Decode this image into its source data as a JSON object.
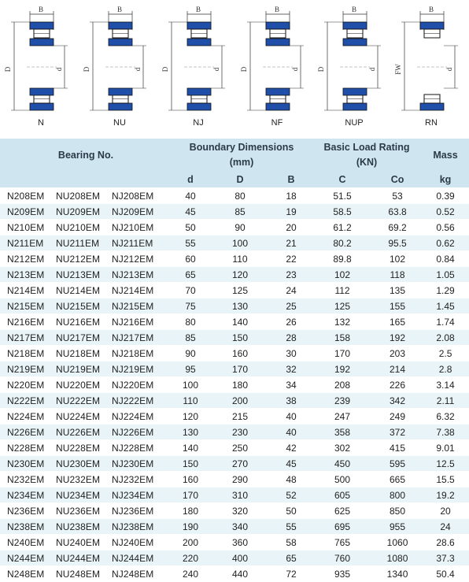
{
  "diagrams": [
    {
      "label": "N",
      "dims": [
        "B",
        "D",
        "d"
      ]
    },
    {
      "label": "NU",
      "dims": [
        "B",
        "D",
        "d"
      ]
    },
    {
      "label": "NJ",
      "dims": [
        "B",
        "D",
        "d"
      ]
    },
    {
      "label": "NF",
      "dims": [
        "B",
        "D",
        "d"
      ]
    },
    {
      "label": "NUP",
      "dims": [
        "B",
        "D",
        "d"
      ]
    },
    {
      "label": "RN",
      "dims": [
        "B",
        "FW",
        "d"
      ]
    }
  ],
  "header": {
    "bearing_no": "Bearing No.",
    "boundary": "Boundary Dimensions",
    "boundary_unit": "(mm)",
    "load": "Basic Load Rating",
    "load_unit": "(KN)",
    "mass": "Mass",
    "col_d": "d",
    "col_D": "D",
    "col_B": "B",
    "col_C": "C",
    "col_Co": "Co",
    "col_kg": "kg"
  },
  "colors": {
    "ring": "#1f4fa8",
    "header_bg": "#cfe6f0",
    "row_alt": "#e9f4f8"
  },
  "rows": [
    {
      "n": "N208EM",
      "nu": "NU208EM",
      "nj": "NJ208EM",
      "d": "40",
      "D": "80",
      "B": "18",
      "C": "51.5",
      "Co": "53",
      "kg": "0.39"
    },
    {
      "n": "N209EM",
      "nu": "NU209EM",
      "nj": "NJ209EM",
      "d": "45",
      "D": "85",
      "B": "19",
      "C": "58.5",
      "Co": "63.8",
      "kg": "0.52"
    },
    {
      "n": "N210EM",
      "nu": "NU210EM",
      "nj": "NJ210EM",
      "d": "50",
      "D": "90",
      "B": "20",
      "C": "61.2",
      "Co": "69.2",
      "kg": "0.56"
    },
    {
      "n": "N211EM",
      "nu": "NU211EM",
      "nj": "NJ211EM",
      "d": "55",
      "D": "100",
      "B": "21",
      "C": "80.2",
      "Co": "95.5",
      "kg": "0.62"
    },
    {
      "n": "N212EM",
      "nu": "NU212EM",
      "nj": "NJ212EM",
      "d": "60",
      "D": "110",
      "B": "22",
      "C": "89.8",
      "Co": "102",
      "kg": "0.84"
    },
    {
      "n": "N213EM",
      "nu": "NU213EM",
      "nj": "NJ213EM",
      "d": "65",
      "D": "120",
      "B": "23",
      "C": "102",
      "Co": "118",
      "kg": "1.05"
    },
    {
      "n": "N214EM",
      "nu": "NU214EM",
      "nj": "NJ214EM",
      "d": "70",
      "D": "125",
      "B": "24",
      "C": "112",
      "Co": "135",
      "kg": "1.29"
    },
    {
      "n": "N215EM",
      "nu": "NU215EM",
      "nj": "NJ215EM",
      "d": "75",
      "D": "130",
      "B": "25",
      "C": "125",
      "Co": "155",
      "kg": "1.45"
    },
    {
      "n": "N216EM",
      "nu": "NU216EM",
      "nj": "NJ216EM",
      "d": "80",
      "D": "140",
      "B": "26",
      "C": "132",
      "Co": "165",
      "kg": "1.74"
    },
    {
      "n": "N217EM",
      "nu": "NU217EM",
      "nj": "NJ217EM",
      "d": "85",
      "D": "150",
      "B": "28",
      "C": "158",
      "Co": "192",
      "kg": "2.08"
    },
    {
      "n": "N218EM",
      "nu": "NU218EM",
      "nj": "NJ218EM",
      "d": "90",
      "D": "160",
      "B": "30",
      "C": "170",
      "Co": "203",
      "kg": "2.5"
    },
    {
      "n": "N219EM",
      "nu": "NU219EM",
      "nj": "NJ219EM",
      "d": "95",
      "D": "170",
      "B": "32",
      "C": "192",
      "Co": "214",
      "kg": "2.8"
    },
    {
      "n": "N220EM",
      "nu": "NU220EM",
      "nj": "NJ220EM",
      "d": "100",
      "D": "180",
      "B": "34",
      "C": "208",
      "Co": "226",
      "kg": "3.14"
    },
    {
      "n": "N222EM",
      "nu": "NU222EM",
      "nj": "NJ222EM",
      "d": "110",
      "D": "200",
      "B": "38",
      "C": "239",
      "Co": "342",
      "kg": "2.11"
    },
    {
      "n": "N224EM",
      "nu": "NU224EM",
      "nj": "NJ224EM",
      "d": "120",
      "D": "215",
      "B": "40",
      "C": "247",
      "Co": "249",
      "kg": "6.32"
    },
    {
      "n": "N226EM",
      "nu": "NU226EM",
      "nj": "NJ226EM",
      "d": "130",
      "D": "230",
      "B": "40",
      "C": "358",
      "Co": "372",
      "kg": "7.38"
    },
    {
      "n": "N228EM",
      "nu": "NU228EM",
      "nj": "NJ228EM",
      "d": "140",
      "D": "250",
      "B": "42",
      "C": "302",
      "Co": "415",
      "kg": "9.01"
    },
    {
      "n": "N230EM",
      "nu": "NU230EM",
      "nj": "NJ230EM",
      "d": "150",
      "D": "270",
      "B": "45",
      "C": "450",
      "Co": "595",
      "kg": "12.5"
    },
    {
      "n": "N232EM",
      "nu": "NU232EM",
      "nj": "NJ232EM",
      "d": "160",
      "D": "290",
      "B": "48",
      "C": "500",
      "Co": "665",
      "kg": "15.5"
    },
    {
      "n": "N234EM",
      "nu": "NU234EM",
      "nj": "NJ234EM",
      "d": "170",
      "D": "310",
      "B": "52",
      "C": "605",
      "Co": "800",
      "kg": "19.2"
    },
    {
      "n": "N236EM",
      "nu": "NU236EM",
      "nj": "NJ236EM",
      "d": "180",
      "D": "320",
      "B": "50",
      "C": "625",
      "Co": "850",
      "kg": "20"
    },
    {
      "n": "N238EM",
      "nu": "NU238EM",
      "nj": "NJ238EM",
      "d": "190",
      "D": "340",
      "B": "55",
      "C": "695",
      "Co": "955",
      "kg": "24"
    },
    {
      "n": "N240EM",
      "nu": "NU240EM",
      "nj": "NJ240EM",
      "d": "200",
      "D": "360",
      "B": "58",
      "C": "765",
      "Co": "1060",
      "kg": "28.6"
    },
    {
      "n": "N244EM",
      "nu": "NU244EM",
      "nj": "NJ244EM",
      "d": "220",
      "D": "400",
      "B": "65",
      "C": "760",
      "Co": "1080",
      "kg": "37.3"
    },
    {
      "n": "N248EM",
      "nu": "NU248EM",
      "nj": "NJ248EM",
      "d": "240",
      "D": "440",
      "B": "72",
      "C": "935",
      "Co": "1340",
      "kg": "50.4"
    }
  ]
}
